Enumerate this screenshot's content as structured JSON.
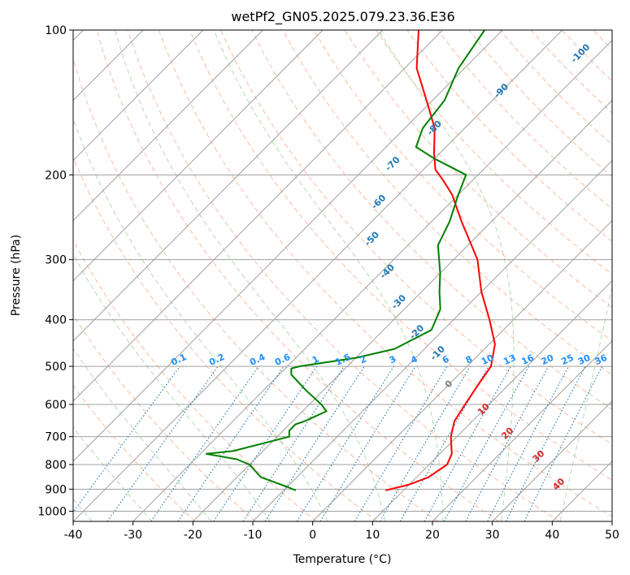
{
  "chart_data": {
    "type": "line",
    "title": "wetPf2_GN05.2025.079.23.36.E36",
    "xlabel": "Temperature (°C)",
    "ylabel": "Pressure (hPa)",
    "xlim": [
      -40,
      50
    ],
    "ylim": [
      1050,
      100
    ],
    "y_scale": "log",
    "skew_deg_per_decade": 80,
    "x_ticks": [
      -40,
      -30,
      -20,
      -10,
      0,
      10,
      20,
      30,
      40,
      50
    ],
    "y_ticks": [
      100,
      200,
      300,
      400,
      500,
      600,
      700,
      800,
      900,
      1000
    ],
    "grid": true,
    "series": [
      {
        "key": "temperature",
        "color": "#ff0000",
        "p": [
          905,
          880,
          850,
          800,
          760,
          700,
          650,
          600,
          550,
          500,
          450,
          400,
          350,
          300,
          250,
          220,
          205,
          195,
          180,
          160,
          140,
          120,
          100
        ],
        "t": [
          7,
          10,
          12,
          13,
          12,
          9,
          7,
          6,
          5,
          4,
          1,
          -4,
          -10,
          -16,
          -25,
          -31,
          -35,
          -38,
          -41,
          -45,
          -51,
          -58,
          -64
        ]
      },
      {
        "key": "dewpoint",
        "color": "#008000",
        "p": [
          905,
          890,
          850,
          800,
          780,
          760,
          750,
          700,
          680,
          660,
          650,
          620,
          600,
          560,
          520,
          505,
          500,
          480,
          460,
          420,
          380,
          350,
          320,
          280,
          250,
          220,
          200,
          185,
          175,
          160,
          140,
          120,
          100
        ],
        "t": [
          -8,
          -10,
          -16,
          -20,
          -23,
          -29,
          -25,
          -18,
          -19,
          -19,
          -18,
          -16,
          -18,
          -23,
          -28,
          -29,
          -28,
          -20,
          -15,
          -12,
          -14,
          -17,
          -20,
          -25,
          -27,
          -30,
          -32,
          -40,
          -45,
          -47,
          -48,
          -51,
          -53
        ]
      }
    ],
    "isotherm_step": 10,
    "dry_adiabats_k": [
      250,
      260,
      270,
      280,
      290,
      300,
      310,
      320,
      330,
      340,
      350,
      360,
      370,
      380,
      390,
      400,
      410,
      420,
      430,
      440,
      450,
      460,
      470,
      480,
      490,
      500,
      520,
      540
    ],
    "moist_adiabats_c": [
      -40,
      -30,
      -20,
      -10,
      0,
      10,
      20,
      30,
      40,
      50
    ],
    "mixing_ratio_values": [
      "0.1",
      "0.2",
      "0.4",
      "0.6",
      "1",
      "1.5",
      "2",
      "3",
      "4",
      "6",
      "8",
      "10",
      "13",
      "16",
      "20",
      "25",
      "30",
      "36"
    ],
    "height_labels": [
      {
        "text": "-100",
        "p": 112,
        "t": -33
      },
      {
        "text": "-90",
        "p": 134,
        "t": -40
      },
      {
        "text": "-80",
        "p": 160,
        "t": -45
      },
      {
        "text": "-70",
        "p": 190,
        "t": -46
      },
      {
        "text": "-60",
        "p": 228,
        "t": -42
      },
      {
        "text": "-50",
        "p": 272,
        "t": -37
      },
      {
        "text": "-40",
        "p": 318,
        "t": -29
      },
      {
        "text": "-30",
        "p": 368,
        "t": -22
      },
      {
        "text": "-20",
        "p": 425,
        "t": -14
      },
      {
        "text": "-10",
        "p": 470,
        "t": -7
      }
    ],
    "hot_labels": [
      {
        "text": "0",
        "p": 545,
        "t": 0,
        "color": "#808080"
      },
      {
        "text": "10",
        "p": 615,
        "t": 10,
        "color": "#d62728"
      },
      {
        "text": "20",
        "p": 690,
        "t": 18,
        "color": "#d62728"
      },
      {
        "text": "30",
        "p": 770,
        "t": 27,
        "color": "#d62728"
      },
      {
        "text": "40",
        "p": 880,
        "t": 35,
        "color": "#d62728"
      }
    ],
    "colors": {
      "temperature": "#ff0000",
      "dewpoint": "#008000",
      "isotherm": "#a0a0a0",
      "isobar": "#a0a0a0",
      "dry_adiabat": "#f4a582",
      "moist_adiabat": "#9fd19f",
      "mixing_ratio": "#1f77b4",
      "mixing_ratio_label": "#1e90ff",
      "height_label": "#1f77b4"
    }
  }
}
